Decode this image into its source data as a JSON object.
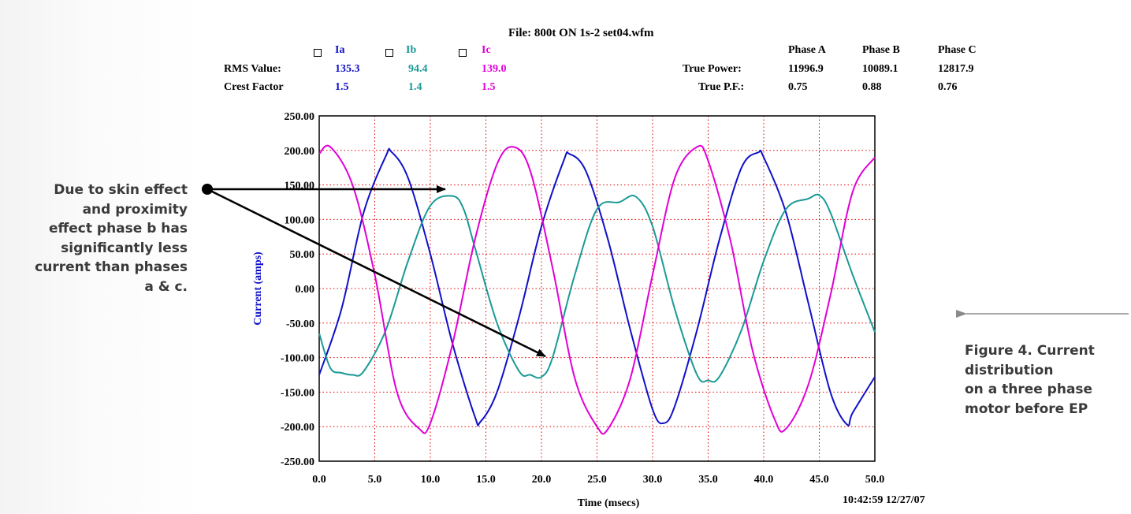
{
  "header": {
    "file": "File: 800t ON 1s-2 set04.wfm",
    "channels": [
      {
        "name": "Ia",
        "rms": "135.3",
        "crest": "1.5",
        "color": "#1010c8"
      },
      {
        "name": "Ib",
        "rms": "94.4",
        "crest": "1.4",
        "color": "#1a9a96"
      },
      {
        "name": "Ic",
        "rms": "139.0",
        "crest": "1.5",
        "color": "#e000d8"
      }
    ],
    "rms_label": "RMS Value:",
    "crest_label": "Crest Factor",
    "phases": [
      "Phase A",
      "Phase B",
      "Phase C"
    ],
    "true_power_label": "True Power:",
    "true_power": [
      "11996.9",
      "10089.1",
      "12817.9"
    ],
    "true_pf_label": "True P.F.:",
    "true_pf": [
      "0.75",
      "0.88",
      "0.76"
    ]
  },
  "annotation_left": [
    "Due to skin effect",
    "and proximity",
    "effect phase b has",
    "significantly less",
    "current than phases",
    "a & c."
  ],
  "caption": [
    "Figure 4. Current",
    "distribution",
    "on a three phase",
    "motor before EP"
  ],
  "timestamp": "10:42:59 12/27/07",
  "chart_data": {
    "type": "line",
    "xlabel": "Time (msecs)",
    "ylabel": "Current (amps)",
    "xlim": [
      0,
      50
    ],
    "ylim": [
      -250,
      250
    ],
    "xticks": [
      "0.0",
      "5.0",
      "10.0",
      "15.0",
      "20.0",
      "25.0",
      "30.0",
      "35.0",
      "40.0",
      "45.0",
      "50.0"
    ],
    "yticks": [
      "250.00",
      "200.00",
      "150.00",
      "100.00",
      "50.00",
      "0.00",
      "-50.00",
      "-100.00",
      "-150.00",
      "-200.00",
      "-250.00"
    ],
    "grid": true,
    "grid_color": "#e00000",
    "series": [
      {
        "name": "Ia",
        "color": "#1010c8",
        "x": [
          0,
          2,
          4,
          6,
          6.5,
          8,
          10,
          12,
          14,
          14.5,
          16,
          18,
          20,
          22,
          22.5,
          24,
          26,
          28,
          30,
          31,
          32,
          34,
          36,
          38,
          39.5,
          40,
          42,
          44,
          46,
          47.5,
          48,
          50
        ],
        "y": [
          -125,
          -30,
          110,
          192,
          198,
          160,
          50,
          -80,
          -185,
          -193,
          -150,
          -40,
          90,
          185,
          195,
          170,
          70,
          -60,
          -175,
          -195,
          -170,
          -60,
          70,
          175,
          197,
          190,
          110,
          -20,
          -150,
          -197,
          -180,
          -128
        ]
      },
      {
        "name": "Ib",
        "color": "#1a9a96",
        "x": [
          0,
          1,
          2,
          3,
          4,
          6,
          8,
          10,
          12,
          13,
          14,
          16,
          18,
          19,
          20,
          21,
          23,
          25,
          27,
          28.5,
          30,
          32,
          34,
          35,
          36,
          38,
          40,
          42,
          44,
          45,
          46,
          48,
          50
        ],
        "y": [
          -65,
          -115,
          -122,
          -125,
          -120,
          -60,
          40,
          120,
          134,
          115,
          60,
          -50,
          -120,
          -125,
          -128,
          -100,
          20,
          115,
          125,
          133,
          90,
          -30,
          -125,
          -133,
          -128,
          -60,
          40,
          115,
          130,
          135,
          110,
          20,
          -63
        ]
      },
      {
        "name": "Ic",
        "color": "#e000d8",
        "x": [
          0,
          1,
          3,
          5,
          7,
          9,
          10,
          12,
          14,
          16,
          17.5,
          19,
          21,
          23,
          25,
          26,
          28,
          30,
          32,
          34,
          35,
          37,
          39,
          41,
          42,
          44,
          46,
          48,
          50
        ],
        "y": [
          195,
          205,
          150,
          20,
          -150,
          -203,
          -195,
          -80,
          70,
          180,
          205,
          170,
          30,
          -130,
          -200,
          -203,
          -130,
          20,
          160,
          205,
          185,
          70,
          -90,
          -190,
          -203,
          -140,
          -10,
          140,
          190
        ]
      }
    ]
  }
}
